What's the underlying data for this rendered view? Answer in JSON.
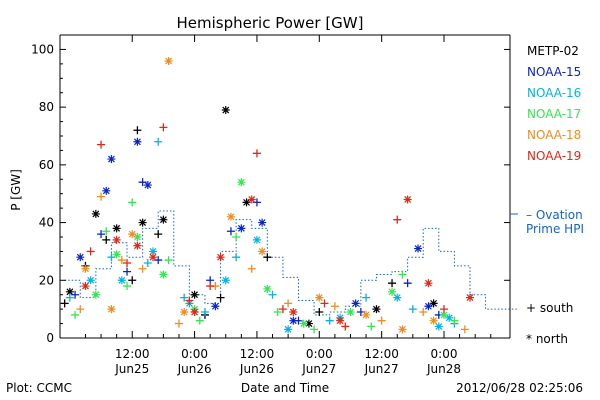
{
  "chart_data": {
    "type": "scatter",
    "title": "Hemispheric Power [GW]",
    "xlabel": "Date and Time",
    "ylabel": "P [GW]",
    "ylim": [
      0,
      105
    ],
    "xlim": [
      -1.9,
      84.7
    ],
    "x_unit": "hours since 2012-06-24 00:00 UT",
    "yticks": [
      0,
      20,
      40,
      60,
      80,
      100
    ],
    "xticks": [
      {
        "x": 12,
        "time": "12:00",
        "date": "Jun25"
      },
      {
        "x": 24,
        "time": "0:00",
        "date": "Jun26"
      },
      {
        "x": 36,
        "time": "12:00",
        "date": "Jun26"
      },
      {
        "x": 48,
        "time": "0:00",
        "date": "Jun27"
      },
      {
        "x": 60,
        "time": "12:00",
        "date": "Jun27"
      },
      {
        "x": 72,
        "time": "0:00",
        "date": "Jun28"
      }
    ],
    "grid": false,
    "legend_position": "right",
    "marker_legend": {
      "south": "+ south",
      "north": "* north"
    },
    "series": [
      {
        "name": "METP-02",
        "color": "#000000",
        "south": [
          [
            -1,
            12
          ],
          [
            3,
            25
          ],
          [
            7,
            34
          ],
          [
            12,
            20
          ],
          [
            13,
            72
          ],
          [
            17,
            36
          ],
          [
            26,
            8
          ],
          [
            29,
            14
          ],
          [
            38,
            28
          ],
          [
            48,
            9
          ],
          [
            62,
            19
          ]
        ],
        "north": [
          [
            0,
            16
          ],
          [
            5,
            43
          ],
          [
            9,
            38
          ],
          [
            14,
            40
          ],
          [
            18,
            41
          ],
          [
            24,
            15
          ],
          [
            30,
            79
          ],
          [
            34,
            47
          ],
          [
            46,
            5
          ],
          [
            59,
            10
          ],
          [
            70,
            12
          ]
        ]
      },
      {
        "name": "NOAA-15",
        "color": "#0a24c8",
        "south": [
          [
            1,
            15
          ],
          [
            6,
            36
          ],
          [
            11,
            23
          ],
          [
            14,
            54
          ],
          [
            17,
            27
          ],
          [
            27,
            20
          ],
          [
            31,
            37
          ],
          [
            36,
            47
          ],
          [
            44,
            6
          ],
          [
            56,
            9
          ],
          [
            65,
            19
          ],
          [
            71,
            8
          ]
        ],
        "north": [
          [
            2,
            28
          ],
          [
            7,
            51
          ],
          [
            8,
            62
          ],
          [
            13,
            68
          ],
          [
            15,
            53
          ],
          [
            28,
            11
          ],
          [
            33,
            38
          ],
          [
            37,
            40
          ],
          [
            43,
            6
          ],
          [
            55,
            12
          ],
          [
            67,
            31
          ],
          [
            69,
            11
          ]
        ]
      },
      {
        "name": "NOAA-16",
        "color": "#00b4e6",
        "south": [
          [
            0,
            14
          ],
          [
            8,
            28
          ],
          [
            15,
            26
          ],
          [
            17,
            68
          ],
          [
            22,
            14
          ],
          [
            26,
            9
          ],
          [
            32,
            28
          ],
          [
            39,
            15
          ],
          [
            50,
            6
          ],
          [
            57,
            14
          ],
          [
            66,
            10
          ],
          [
            74,
            5
          ]
        ],
        "north": [
          [
            4,
            20
          ],
          [
            10,
            20
          ],
          [
            16,
            30
          ],
          [
            23,
            12
          ],
          [
            30,
            20
          ],
          [
            36,
            34
          ],
          [
            42,
            3
          ],
          [
            52,
            7
          ],
          [
            63,
            14
          ],
          [
            71,
            4
          ],
          [
            73,
            7
          ]
        ]
      },
      {
        "name": "NOAA-17",
        "color": "#32e650",
        "south": [
          [
            1,
            8
          ],
          [
            7,
            37
          ],
          [
            11,
            18
          ],
          [
            12,
            47
          ],
          [
            19,
            27
          ],
          [
            25,
            6
          ],
          [
            32,
            35
          ],
          [
            40,
            9
          ],
          [
            47,
            3
          ],
          [
            58,
            4
          ],
          [
            64,
            22
          ],
          [
            74,
            6
          ]
        ],
        "north": [
          [
            5,
            15
          ],
          [
            9,
            29
          ],
          [
            13,
            35
          ],
          [
            18,
            22
          ],
          [
            24,
            10
          ],
          [
            33,
            54
          ],
          [
            38,
            17
          ],
          [
            45,
            5
          ],
          [
            54,
            9
          ],
          [
            62,
            16
          ],
          [
            72,
            8
          ]
        ]
      },
      {
        "name": "NOAA-18",
        "color": "#f08c1e",
        "south": [
          [
            2,
            10
          ],
          [
            6,
            49
          ],
          [
            10,
            27
          ],
          [
            14,
            24
          ],
          [
            21,
            5
          ],
          [
            28,
            18
          ],
          [
            35,
            24
          ],
          [
            42,
            12
          ],
          [
            51,
            11
          ],
          [
            60,
            6
          ],
          [
            68,
            9
          ],
          [
            76,
            3
          ]
        ],
        "north": [
          [
            3,
            24
          ],
          [
            8,
            10
          ],
          [
            12,
            36
          ],
          [
            19,
            96
          ],
          [
            22,
            9
          ],
          [
            31,
            42
          ],
          [
            37,
            30
          ],
          [
            48,
            14
          ],
          [
            57,
            8
          ],
          [
            64,
            3
          ],
          [
            70,
            6
          ]
        ]
      },
      {
        "name": "NOAA-19",
        "color": "#e02814",
        "south": [
          [
            4,
            30
          ],
          [
            6,
            67
          ],
          [
            11,
            26
          ],
          [
            18,
            73
          ],
          [
            23,
            13
          ],
          [
            27,
            18
          ],
          [
            36,
            64
          ],
          [
            41,
            10
          ],
          [
            49,
            12
          ],
          [
            53,
            4
          ],
          [
            63,
            41
          ],
          [
            72,
            10
          ]
        ],
        "north": [
          [
            3,
            18
          ],
          [
            9,
            34
          ],
          [
            13,
            32
          ],
          [
            16,
            28
          ],
          [
            24,
            9
          ],
          [
            29,
            28
          ],
          [
            35,
            48
          ],
          [
            43,
            9
          ],
          [
            52,
            6
          ],
          [
            65,
            48
          ],
          [
            69,
            19
          ],
          [
            77,
            14
          ]
        ]
      }
    ],
    "ovation_series": {
      "name": "Ovation Prime HPI",
      "legend_line1": "– Ovation",
      "legend_line2": "Prime HPI",
      "color": "#1464c8",
      "x": [
        -1,
        2,
        5,
        8,
        11,
        14,
        17,
        20,
        23,
        26,
        29,
        32,
        35,
        38,
        41,
        44,
        47,
        50,
        53,
        56,
        59,
        62,
        65,
        68,
        71,
        74,
        77,
        80,
        83
      ],
      "y": [
        20,
        14,
        24,
        33,
        28,
        38,
        44,
        25,
        15,
        12,
        30,
        41,
        38,
        28,
        21,
        13,
        8,
        9,
        11,
        20,
        22,
        23,
        28,
        38,
        30,
        25,
        15,
        10,
        10
      ]
    }
  },
  "footer": {
    "plot_source": "Plot: CCMC",
    "timestamp": "2012/06/28 02:25:06"
  }
}
